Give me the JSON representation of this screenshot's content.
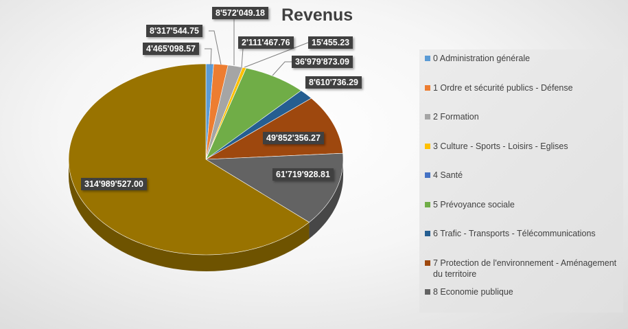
{
  "chart_data": {
    "type": "pie",
    "title": "Revenus",
    "legend_position": "right",
    "slices": [
      {
        "label": "0 Administration générale",
        "value": 4465098.57,
        "display": "4'465'098.57",
        "color": "#5b9bd5",
        "in_legend": true
      },
      {
        "label": "1 Ordre et sécurité publics - Défense",
        "value": 8317544.75,
        "display": "8'317'544.75",
        "color": "#ed7d31",
        "in_legend": true
      },
      {
        "label": "2 Formation",
        "value": 8572049.18,
        "display": "8'572'049.18",
        "color": "#a5a5a5",
        "in_legend": true
      },
      {
        "label": "3 Culture - Sports - Loisirs - Eglises",
        "value": 2111467.76,
        "display": "2'111'467.76",
        "color": "#ffc000",
        "in_legend": true
      },
      {
        "label": "4 Santé",
        "value": 15455.23,
        "display": "15'455.23",
        "color": "#4472c4",
        "in_legend": true
      },
      {
        "label": "5 Prévoyance sociale",
        "value": 36979873.09,
        "display": "36'979'873.09",
        "color": "#70ad47",
        "in_legend": true
      },
      {
        "label": "6 Trafic - Transports - Télécommunications",
        "value": 8610736.29,
        "display": "8'610'736.29",
        "color": "#255e91",
        "in_legend": true
      },
      {
        "label": "7 Protection de l'environnement - Aménagement du territoire",
        "value": 49852356.27,
        "display": "49'852'356.27",
        "color": "#9e480e",
        "in_legend": true
      },
      {
        "label": "8 Economie publique",
        "value": 61719928.81,
        "display": "61'719'928.81",
        "color": "#636363",
        "in_legend": true
      },
      {
        "label": "",
        "value": 314989527.0,
        "display": "314'989'527.00",
        "color": "#997300",
        "in_legend": false
      }
    ]
  }
}
